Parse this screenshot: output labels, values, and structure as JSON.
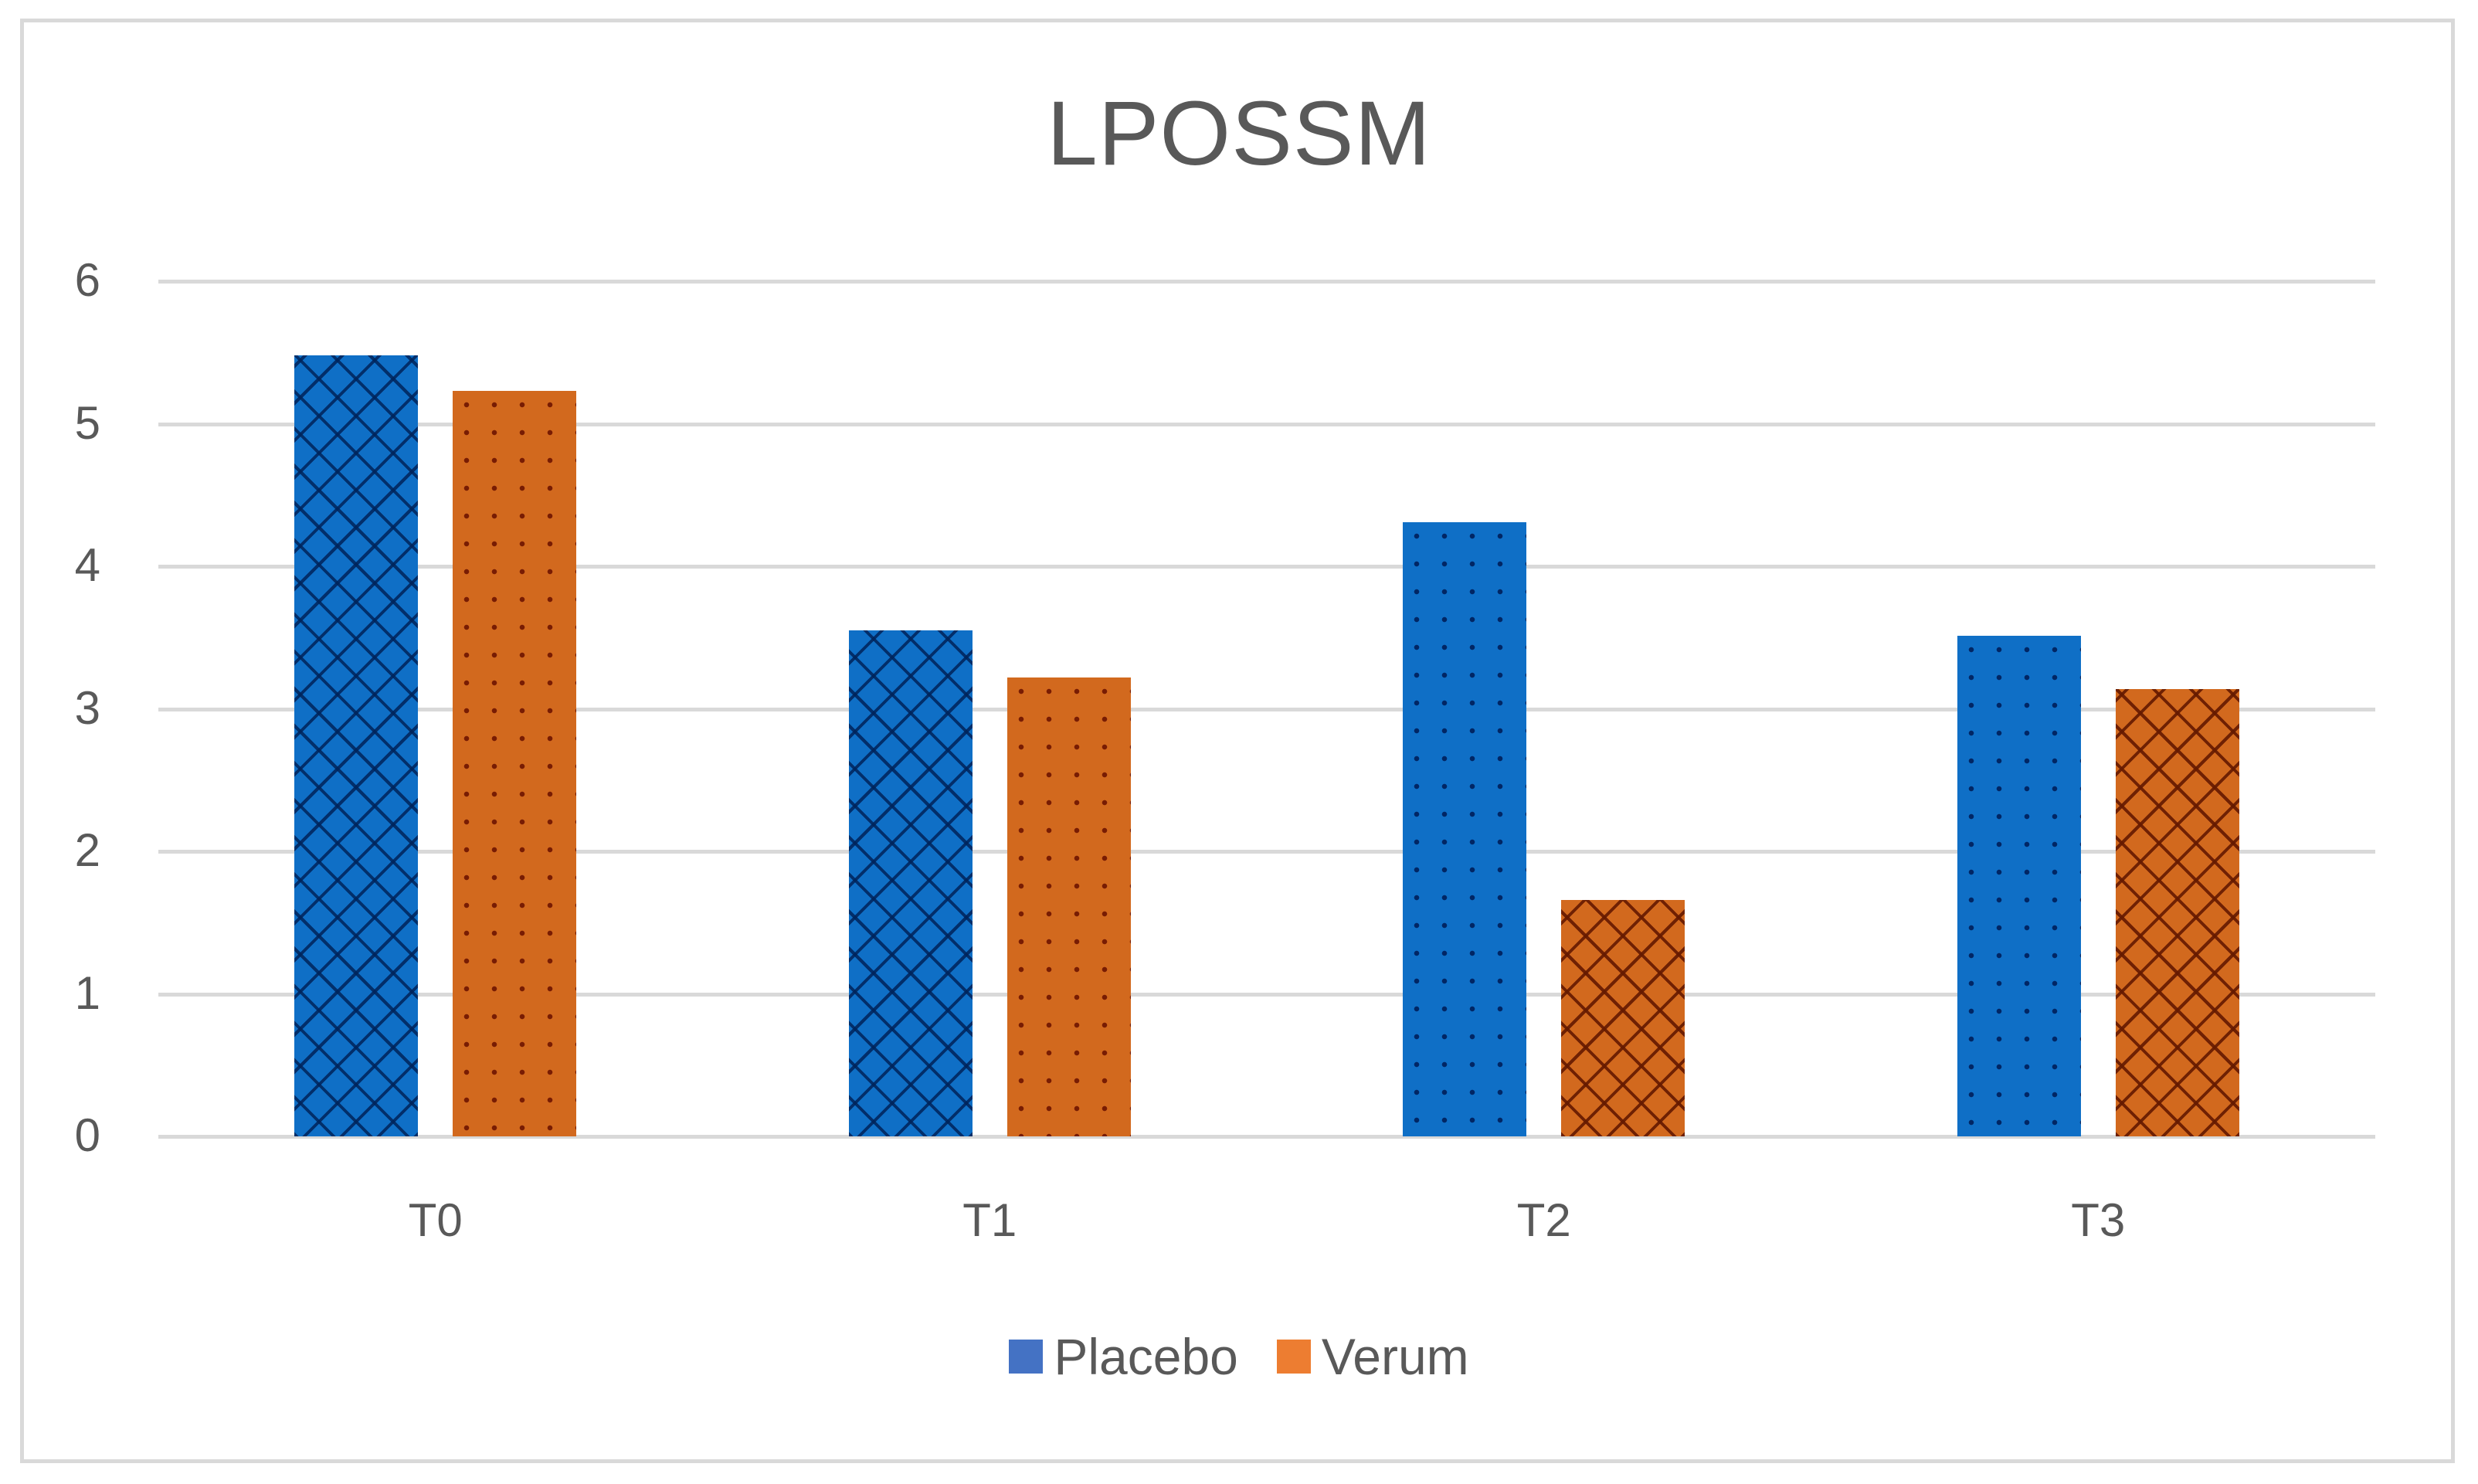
{
  "chart_data": {
    "type": "bar",
    "title": "LPOSSM",
    "xlabel": "",
    "ylabel": "",
    "categories": [
      "T0",
      "T1",
      "T2",
      "T3"
    ],
    "series": [
      {
        "name": "Placebo",
        "values": [
          5.48,
          3.55,
          4.31,
          3.51
        ],
        "color": "#0f6fc6",
        "patterns": [
          "crosshatch",
          "crosshatch",
          "dots",
          "dots"
        ]
      },
      {
        "name": "Verum",
        "values": [
          5.23,
          3.22,
          1.66,
          3.14
        ],
        "color": "#d2691e",
        "patterns": [
          "dots",
          "dots",
          "crosshatch",
          "crosshatch"
        ]
      }
    ],
    "ylim": [
      0,
      6
    ],
    "yticks": [
      "0",
      "1",
      "2",
      "3",
      "4",
      "5",
      "6"
    ],
    "grid": true,
    "legend_position": "bottom"
  },
  "legend": {
    "items": [
      {
        "label": "Placebo",
        "color": "#4472c4"
      },
      {
        "label": "Verum",
        "color": "#ed7d31"
      }
    ]
  }
}
